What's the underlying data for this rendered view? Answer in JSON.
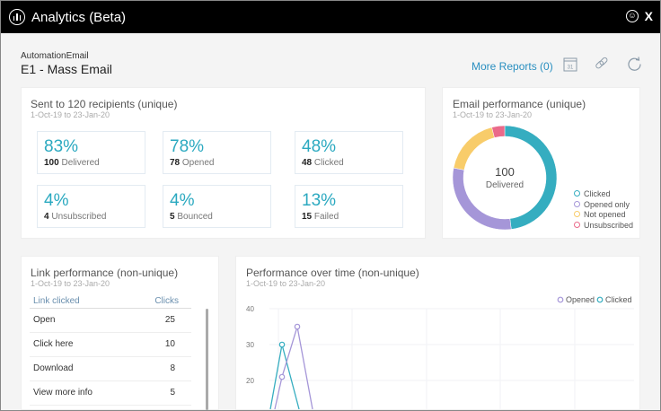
{
  "window": {
    "title": "Analytics (Beta)",
    "smile_icon": "smiley-icon",
    "close_label": "X"
  },
  "header": {
    "subtitle": "AutomationEmail",
    "title": "E1 - Mass Email",
    "more_reports": "More Reports (0)",
    "icons": [
      "calendar-icon",
      "link-icon",
      "refresh-icon"
    ],
    "calendar_day": "31"
  },
  "sent": {
    "title": "Sent to 120 recipients (unique)",
    "date": "1-Oct-19 to 23-Jan-20",
    "stats": [
      {
        "pct": "83%",
        "count": "100",
        "label": "Delivered"
      },
      {
        "pct": "78%",
        "count": "78",
        "label": "Opened"
      },
      {
        "pct": "48%",
        "count": "48",
        "label": "Clicked"
      },
      {
        "pct": "4%",
        "count": "4",
        "label": "Unsubscribed"
      },
      {
        "pct": "4%",
        "count": "5",
        "label": "Bounced"
      },
      {
        "pct": "13%",
        "count": "15",
        "label": "Failed"
      }
    ]
  },
  "email_perf": {
    "title": "Email performance (unique)",
    "date": "1-Oct-19 to 23-Jan-20",
    "center_value": "100",
    "center_label": "Delivered",
    "chart_data": {
      "type": "pie",
      "donut": true,
      "slices": [
        {
          "name": "Clicked",
          "value": 48,
          "color": "#35adc0"
        },
        {
          "name": "Opened only",
          "value": 30,
          "color": "#a596d8"
        },
        {
          "name": "Not opened",
          "value": 18,
          "color": "#f8cc6a"
        },
        {
          "name": "Unsubscribed",
          "value": 4,
          "color": "#ea6a8a"
        }
      ],
      "legend": "right"
    }
  },
  "links": {
    "title": "Link performance (non-unique)",
    "date": "1-Oct-19 to 23-Jan-20",
    "col_link": "Link clicked",
    "col_clicks": "Clicks",
    "rows": [
      {
        "link": "Open",
        "clicks": "25"
      },
      {
        "link": "Click here",
        "clicks": "10"
      },
      {
        "link": "Download",
        "clicks": "8"
      },
      {
        "link": "View more info",
        "clicks": "5"
      }
    ]
  },
  "perf_time": {
    "title": "Performance over time (non-unique)",
    "date": "1-Oct-19 to 23-Jan-20",
    "chart_data": {
      "type": "line",
      "yticks": [
        "40",
        "30",
        "20"
      ],
      "grid": true,
      "legend": "top-right",
      "series": [
        {
          "name": "Opened",
          "color": "#a596d8",
          "values": [
            0,
            21,
            35,
            0
          ]
        },
        {
          "name": "Clicked",
          "color": "#35adc0",
          "values": [
            0,
            30,
            0
          ]
        }
      ]
    }
  }
}
